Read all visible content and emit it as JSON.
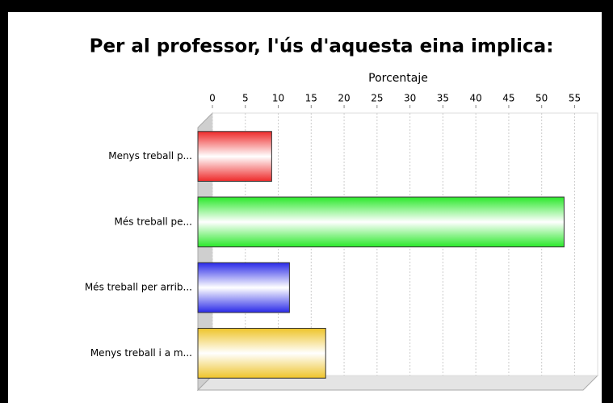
{
  "chart_data": {
    "type": "bar",
    "orientation": "horizontal",
    "title": "Per al professor, l'ús d'aquesta eina implica:",
    "x_label": "Porcentaje",
    "categories": [
      "Menys treball p...",
      "Més treball pe...",
      "Més treball per arrib...",
      "Menys treball i a m..."
    ],
    "values": [
      9,
      53.4,
      11.7,
      17.2
    ],
    "colors": [
      "#ee2a2a",
      "#2ae82a",
      "#2a2ae8",
      "#eec42a"
    ],
    "xlim": [
      0,
      58.5
    ],
    "xticks": [
      0,
      5,
      10,
      15,
      20,
      25,
      30,
      35,
      40,
      45,
      50,
      55
    ],
    "grid": true
  }
}
